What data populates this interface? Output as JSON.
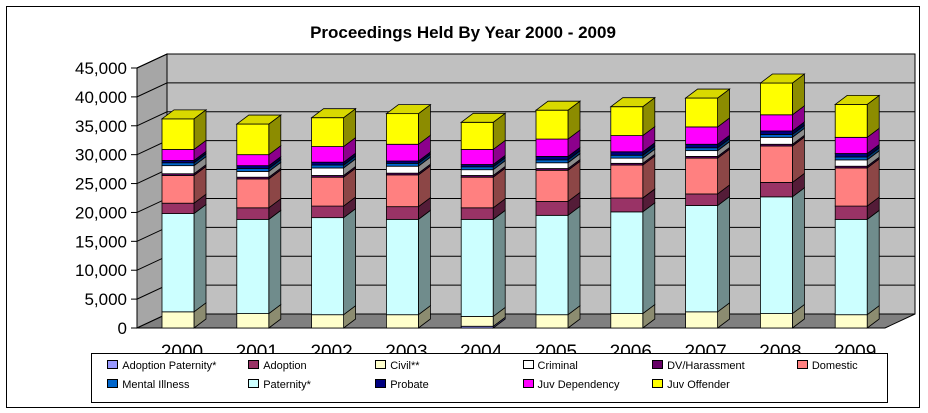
{
  "chart_data": {
    "type": "bar",
    "stacked": true,
    "style": "3d",
    "title": "Proceedings Held By Year 2000 - 2009",
    "xlabel": "",
    "ylabel": "",
    "ylim": [
      0,
      45000
    ],
    "y_ticks": [
      "0",
      "5,000",
      "10,000",
      "15,000",
      "20,000",
      "25,000",
      "30,000",
      "35,000",
      "40,000",
      "45,000"
    ],
    "grid": true,
    "legend_position": "bottom",
    "categories": [
      "2000",
      "2001",
      "2002",
      "2003",
      "2004",
      "2005",
      "2006",
      "2007",
      "2008",
      "2009"
    ],
    "series": [
      {
        "name": "Adoption Paternity*",
        "color": "#9999ff",
        "values": [
          0,
          0,
          0,
          0,
          300,
          0,
          0,
          0,
          0,
          0
        ]
      },
      {
        "name": "Civil**",
        "color": "#ffffcc",
        "values": [
          2800,
          2500,
          2300,
          2300,
          1700,
          2300,
          2500,
          2800,
          2500,
          2300
        ]
      },
      {
        "name": "Paternity*",
        "color": "#ccffff",
        "values": [
          17000,
          16300,
          16800,
          16500,
          16800,
          17200,
          17600,
          18400,
          20200,
          16500
        ]
      },
      {
        "name": "Adoption",
        "color": "#993366",
        "values": [
          1800,
          2000,
          2000,
          2200,
          2000,
          2400,
          2400,
          2000,
          2500,
          2300
        ]
      },
      {
        "name": "Domestic",
        "color": "#ff8080",
        "values": [
          4800,
          5000,
          5000,
          5500,
          5300,
          5400,
          5700,
          6200,
          6300,
          6600
        ]
      },
      {
        "name": "DV/Harassment",
        "color": "#660066",
        "values": [
          300,
          300,
          300,
          300,
          300,
          300,
          300,
          300,
          300,
          300
        ]
      },
      {
        "name": "Criminal",
        "color": "#ffffff",
        "values": [
          1400,
          1000,
          1300,
          1200,
          1000,
          1000,
          900,
          1000,
          1200,
          1100
        ]
      },
      {
        "name": "Mental Illness",
        "color": "#0066cc",
        "values": [
          500,
          500,
          500,
          500,
          500,
          500,
          500,
          500,
          500,
          500
        ]
      },
      {
        "name": "Probate",
        "color": "#000080",
        "values": [
          400,
          500,
          500,
          400,
          400,
          600,
          600,
          600,
          600,
          600
        ]
      },
      {
        "name": "Juv Dependency",
        "color": "#ff00ff",
        "values": [
          1900,
          1900,
          2700,
          2900,
          2600,
          3000,
          2800,
          3000,
          2800,
          2800
        ]
      },
      {
        "name": "Juv Offender",
        "color": "#ffff00",
        "values": [
          5300,
          5300,
          5000,
          5300,
          4700,
          5000,
          5000,
          5000,
          5500,
          5700
        ]
      }
    ]
  },
  "legend": {
    "items": [
      {
        "label": "Adoption Paternity*",
        "color": "#9999ff"
      },
      {
        "label": "Adoption",
        "color": "#993366"
      },
      {
        "label": "Civil**",
        "color": "#ffffcc"
      },
      {
        "label": "Criminal",
        "color": "#ffffff"
      },
      {
        "label": "DV/Harassment",
        "color": "#660066"
      },
      {
        "label": "Domestic",
        "color": "#ff8080"
      },
      {
        "label": "Mental Illness",
        "color": "#0066cc"
      },
      {
        "label": "Paternity*",
        "color": "#ccffff"
      },
      {
        "label": "Probate",
        "color": "#000080"
      },
      {
        "label": "Juv Dependency",
        "color": "#ff00ff"
      },
      {
        "label": "Juv Offender",
        "color": "#ffff00"
      }
    ]
  },
  "colors": {
    "wall": "#c0c0c0",
    "floor": "#808080"
  }
}
